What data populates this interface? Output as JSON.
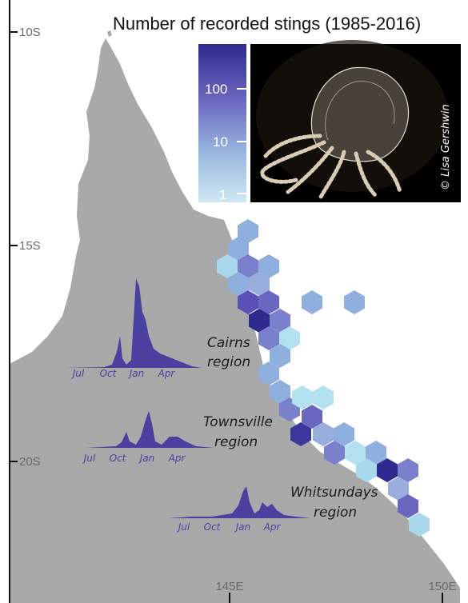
{
  "title": "Number of recorded stings (1985-2016)",
  "latitude_labels": [
    "10S",
    "15S",
    "20S"
  ],
  "longitude_labels": [
    "145E",
    "150E"
  ],
  "legend": {
    "scale": "log",
    "tick_labels": [
      "100",
      "10",
      "1"
    ],
    "color_low": "#cfe8f3",
    "color_high": "#2e2a8e"
  },
  "photo_credit": "© Lisa Gershwin",
  "colors": {
    "land": "#a9a9a9",
    "sea": "#ffffff",
    "density_fill": "#4b3fa0",
    "photo_background": "#000000"
  },
  "regions": [
    {
      "name": "Cairns",
      "label_line1": "Cairns",
      "label_line2": "region",
      "months": [
        "Jul",
        "Oct",
        "Jan",
        "Apr"
      ]
    },
    {
      "name": "Townsville",
      "label_line1": "Townsville",
      "label_line2": "region",
      "months": [
        "Jul",
        "Oct",
        "Jan",
        "Apr"
      ]
    },
    {
      "name": "Whitsundays",
      "label_line1": "Whitsundays",
      "label_line2": "region",
      "months": [
        "Jul",
        "Oct",
        "Jan",
        "Apr"
      ]
    }
  ]
}
